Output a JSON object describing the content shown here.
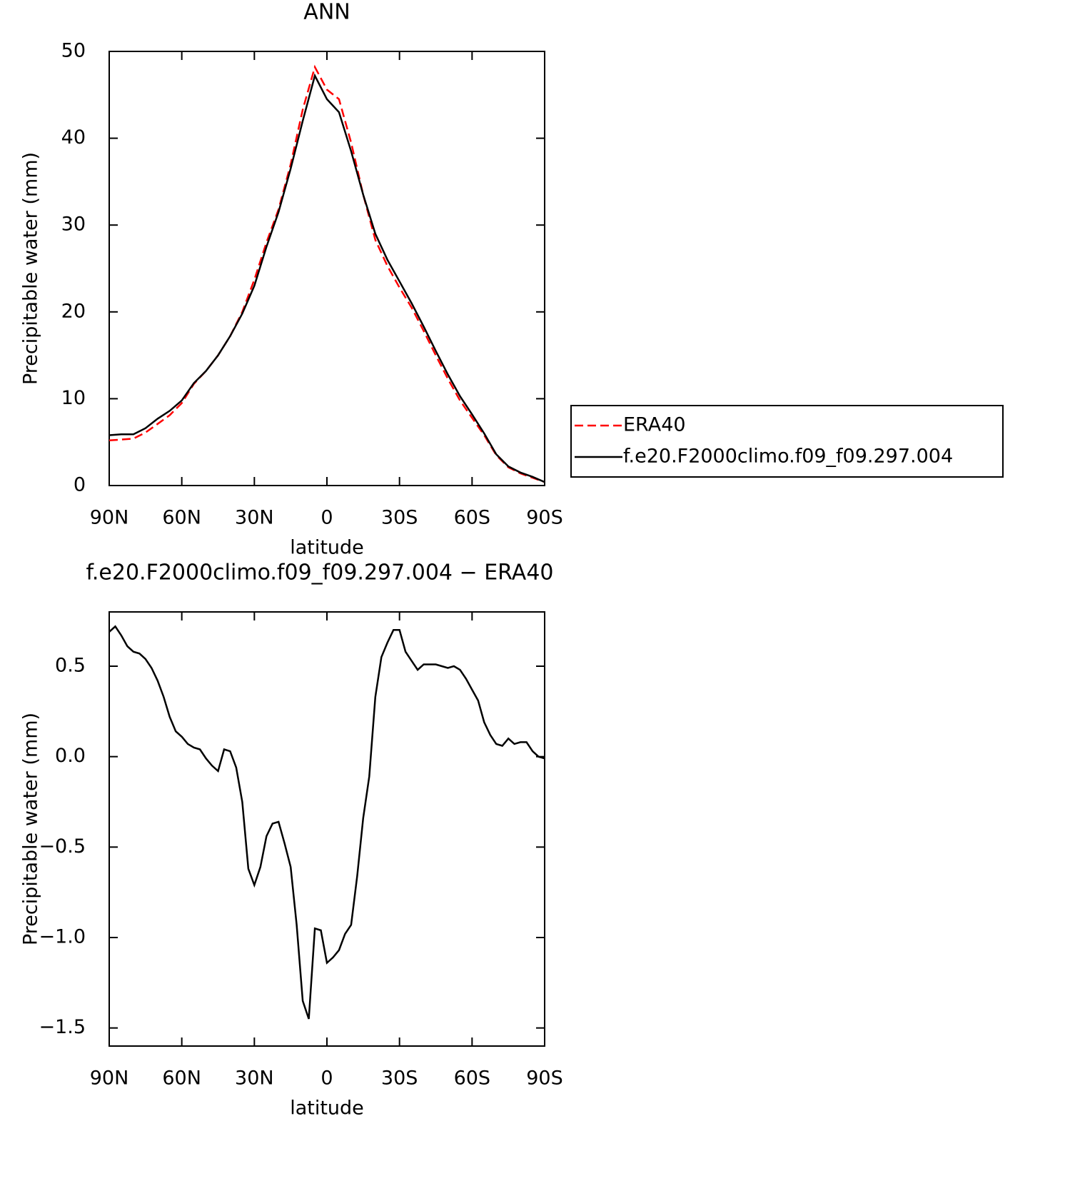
{
  "chart_data": [
    {
      "type": "line",
      "title": "ANN",
      "xlabel": "latitude",
      "ylabel": "Precipitable water (mm)",
      "x": [
        90,
        85,
        80,
        75,
        70,
        65,
        60,
        55,
        50,
        45,
        40,
        35,
        30,
        25,
        20,
        15,
        10,
        5,
        0,
        -5,
        -10,
        -15,
        -20,
        -25,
        -30,
        -35,
        -40,
        -45,
        -50,
        -55,
        -60,
        -65,
        -70,
        -75,
        -80,
        -85,
        -90
      ],
      "series": [
        {
          "name": "ERA40",
          "color": "#ff0000",
          "style": "dashed",
          "values": [
            5.2,
            5.3,
            5.4,
            6.1,
            7.1,
            8.1,
            9.5,
            11.7,
            13.2,
            15.0,
            17.2,
            20.0,
            23.7,
            28.0,
            31.8,
            37.0,
            43.3,
            48.2,
            45.6,
            44.5,
            39.5,
            33.5,
            28.3,
            25.3,
            22.8,
            20.5,
            17.8,
            15.0,
            12.3,
            9.8,
            7.8,
            5.8,
            3.5,
            2.1,
            1.4,
            0.9,
            0.4
          ]
        },
        {
          "name": "f.e20.F2000climo.f09_f09.297.004",
          "color": "#000000",
          "style": "solid",
          "values": [
            5.8,
            5.9,
            5.9,
            6.6,
            7.7,
            8.6,
            9.8,
            11.8,
            13.2,
            15.0,
            17.2,
            19.8,
            23.0,
            27.5,
            31.5,
            36.5,
            42.0,
            47.2,
            44.5,
            43.0,
            38.5,
            33.5,
            29.0,
            26.0,
            23.5,
            21.0,
            18.3,
            15.5,
            12.8,
            10.3,
            8.2,
            6.0,
            3.6,
            2.2,
            1.5,
            1.0,
            0.4
          ]
        }
      ],
      "xlim": [
        90,
        -90
      ],
      "xticks": [
        {
          "value": 90,
          "label": "90N"
        },
        {
          "value": 60,
          "label": "60N"
        },
        {
          "value": 30,
          "label": "30N"
        },
        0,
        {
          "value": -30,
          "label": "30S"
        },
        {
          "value": -60,
          "label": "60S"
        },
        {
          "value": -90,
          "label": "90S"
        }
      ],
      "ylim": [
        0,
        50
      ],
      "yticks": [
        0,
        10,
        20,
        30,
        40,
        50
      ],
      "legend": "right"
    },
    {
      "type": "line",
      "title": "f.e20.F2000climo.f09_f09.297.004 − ERA40",
      "xlabel": "latitude",
      "ylabel": "Precipitable water (mm)",
      "x": [
        90,
        87.5,
        85,
        82.5,
        80,
        77.5,
        75,
        72.5,
        70,
        67.5,
        65,
        62.5,
        60,
        57.5,
        55,
        52.5,
        50,
        47.5,
        45,
        42.5,
        40,
        37.5,
        35,
        32.5,
        30,
        27.5,
        25,
        22.5,
        20,
        17.5,
        15,
        12.5,
        10,
        7.5,
        5,
        2.5,
        0,
        -2.5,
        -5,
        -7.5,
        -10,
        -12.5,
        -15,
        -17.5,
        -20,
        -22.5,
        -25,
        -27.5,
        -30,
        -32.5,
        -35,
        -37.5,
        -40,
        -42.5,
        -45,
        -47.5,
        -50,
        -52.5,
        -55,
        -57.5,
        -60,
        -62.5,
        -65,
        -67.5,
        -70,
        -72.5,
        -75,
        -77.5,
        -80,
        -82.5,
        -85,
        -87.5,
        -90
      ],
      "values": [
        0.69,
        0.72,
        0.67,
        0.61,
        0.58,
        0.57,
        0.54,
        0.49,
        0.42,
        0.33,
        0.22,
        0.14,
        0.11,
        0.07,
        0.05,
        0.04,
        -0.01,
        -0.05,
        -0.08,
        0.04,
        0.03,
        -0.06,
        -0.25,
        -0.62,
        -0.71,
        -0.61,
        -0.44,
        -0.37,
        -0.36,
        -0.48,
        -0.61,
        -0.93,
        -1.35,
        -1.45,
        -0.95,
        -0.96,
        -1.14,
        -1.11,
        -1.07,
        -0.98,
        -0.93,
        -0.66,
        -0.34,
        -0.11,
        0.33,
        0.55,
        0.63,
        0.7,
        0.7,
        0.58,
        0.53,
        0.48,
        0.51,
        0.51,
        0.51,
        0.5,
        0.49,
        0.5,
        0.48,
        0.43,
        0.37,
        0.31,
        0.19,
        0.12,
        0.07,
        0.06,
        0.1,
        0.07,
        0.08,
        0.08,
        0.03,
        0.0,
        -0.01
      ],
      "color": "#000000",
      "xlim": [
        90,
        -90
      ],
      "xticks": [
        {
          "value": 90,
          "label": "90N"
        },
        {
          "value": 60,
          "label": "60N"
        },
        {
          "value": 30,
          "label": "30N"
        },
        0,
        {
          "value": -30,
          "label": "30S"
        },
        {
          "value": -60,
          "label": "60S"
        },
        {
          "value": -90,
          "label": "90S"
        }
      ],
      "ylim": [
        -1.6,
        0.8
      ],
      "yticks": [
        {
          "value": -1.5,
          "label": "−1.5"
        },
        {
          "value": -1.0,
          "label": "−1.0"
        },
        {
          "value": -0.5,
          "label": "−0.5"
        },
        {
          "value": 0.0,
          "label": "0.0"
        },
        0.5
      ]
    }
  ]
}
